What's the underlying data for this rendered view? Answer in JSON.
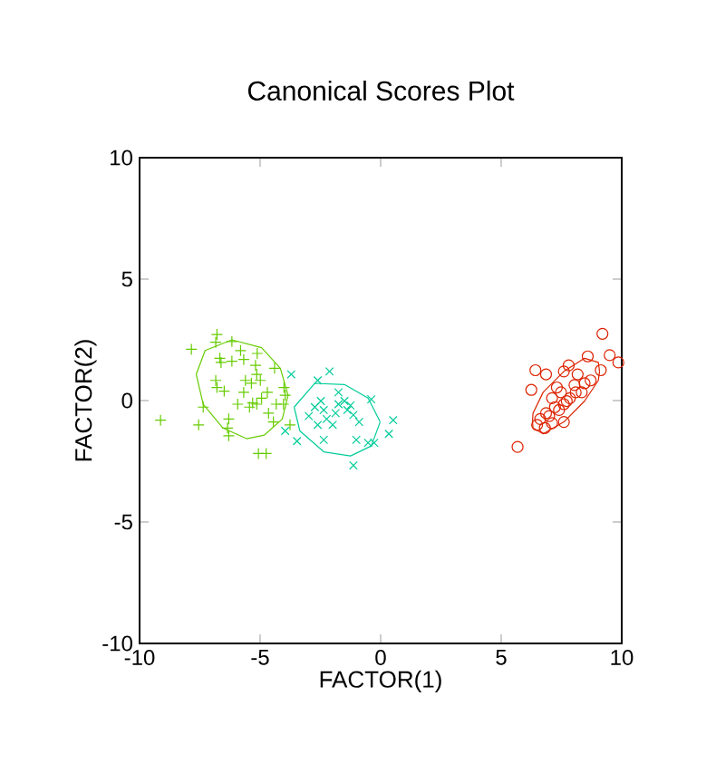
{
  "chart_data": {
    "type": "scatter",
    "title": "Canonical Scores Plot",
    "xlabel": "FACTOR(1)",
    "ylabel": "FACTOR(2)",
    "xlim": [
      -10,
      10
    ],
    "ylim": [
      -10,
      10
    ],
    "xticks": [
      -10,
      -5,
      0,
      5,
      10
    ],
    "yticks": [
      -10,
      -5,
      0,
      5,
      10
    ],
    "grid": false,
    "series": [
      {
        "color": "#66cc00",
        "marker": "plus",
        "x": [
          -7.85,
          -9.13,
          -7.55,
          -7.36,
          -6.79,
          -6.84,
          -6.67,
          -6.62,
          -6.84,
          -6.79,
          -6.49,
          -6.17,
          -6.17,
          -6.3,
          -6.35,
          -6.3,
          -5.81,
          -5.68,
          -5.61,
          -5.68,
          -5.93,
          -5.44,
          -5.31,
          -5.19,
          -5.14,
          -5.12,
          -5.36,
          -4.99,
          -5.14,
          -4.94,
          -5.07,
          -4.75,
          -4.7,
          -4.65,
          -4.45,
          -4.4,
          -4.33,
          -4.01,
          -3.96,
          -4.03,
          -3.76
        ],
        "values": [
          2.11,
          -0.81,
          -1.0,
          -0.27,
          2.72,
          2.4,
          1.74,
          1.57,
          0.83,
          0.54,
          0.39,
          2.43,
          1.62,
          -0.76,
          -1.13,
          -1.45,
          2.06,
          1.69,
          0.83,
          0.34,
          -0.15,
          -0.27,
          -0.1,
          1.45,
          1.08,
          1.94,
          0.71,
          0.83,
          -0.15,
          0.1,
          -2.18,
          -2.18,
          0.34,
          -0.52,
          -0.88,
          1.33,
          -0.15,
          0.54,
          0.22,
          -0.15,
          -1.0
        ]
      },
      {
        "color": "#00cc99",
        "marker": "cross",
        "x": [
          -3.71,
          -3.96,
          -3.47,
          -2.61,
          -2.12,
          -2.48,
          -2.73,
          -2.36,
          -2.24,
          -1.99,
          -2.36,
          -1.75,
          -1.5,
          -1.38,
          -1.25,
          -1.13,
          -1.75,
          -1.87,
          -1.13,
          -1.01,
          -0.52,
          -0.39,
          -0.27,
          0.34,
          0.52,
          -2.98,
          -0.89,
          -2.61
        ],
        "values": [
          1.08,
          -1.25,
          -1.67,
          0.83,
          1.2,
          -0.02,
          -0.27,
          -0.39,
          -0.76,
          -1.0,
          -1.62,
          -0.15,
          -0.02,
          -0.39,
          -0.2,
          -0.59,
          0.34,
          -0.52,
          -2.67,
          -1.62,
          -1.74,
          0.05,
          -1.74,
          -1.37,
          -0.81,
          -0.64,
          -0.88,
          -1.0
        ]
      },
      {
        "color": "#dd2200",
        "marker": "circle",
        "x": [
          5.68,
          9.2,
          9.5,
          9.86,
          9.13,
          8.59,
          6.42,
          6.25,
          6.86,
          7.31,
          7.6,
          7.8,
          8.17,
          8.04,
          8.46,
          8.34,
          7.85,
          7.6,
          7.23,
          6.99,
          6.62,
          6.81,
          6.49,
          7.11,
          7.4,
          7.72,
          8.09,
          7.48,
          7.11,
          6.86,
          7.6,
          8.71
        ],
        "values": [
          -1.91,
          2.75,
          1.87,
          1.57,
          1.25,
          1.82,
          1.25,
          0.44,
          1.08,
          0.54,
          1.2,
          1.45,
          1.08,
          0.64,
          0.71,
          0.34,
          0.1,
          -0.15,
          -0.27,
          -0.64,
          -0.76,
          -1.13,
          -1.0,
          -0.93,
          -0.39,
          -0.02,
          0.34,
          0.34,
          0.1,
          -0.52,
          -0.88,
          0.83
        ]
      },
      {
        "type": "line",
        "color": "#66cc00",
        "marker": "none",
        "x": [
          -7.65,
          -7.28,
          -6.17,
          -4.94,
          -4.16,
          -3.84
        ],
        "values": [
          1.08,
          2.06,
          2.5,
          2.18,
          1.33,
          0.22
        ]
      },
      {
        "type": "line",
        "color": "#66cc00",
        "marker": "none",
        "x": [
          -7.65,
          -7.36,
          -6.54,
          -5.56,
          -4.82,
          -4.08,
          -3.84
        ],
        "values": [
          1.08,
          -0.15,
          -1.13,
          -1.57,
          -1.42,
          -0.76,
          0.22
        ]
      },
      {
        "type": "line",
        "color": "#00cc99",
        "marker": "none",
        "x": [
          -3.59,
          -2.73,
          -1.5,
          -0.52,
          -0.02
        ],
        "values": [
          -0.27,
          0.71,
          0.66,
          0.1,
          -0.88
        ]
      },
      {
        "type": "line",
        "color": "#00cc99",
        "marker": "none",
        "x": [
          -3.59,
          -3.35,
          -2.36,
          -1.25,
          -0.39,
          -0.02
        ],
        "values": [
          -0.27,
          -1.25,
          -2.11,
          -2.28,
          -1.87,
          -0.88
        ]
      },
      {
        "type": "line",
        "color": "#dd2200",
        "marker": "none",
        "x": [
          6.3,
          6.32,
          6.74,
          7.6,
          8.46,
          9.03,
          9.08
        ],
        "values": [
          -0.85,
          -0.52,
          0.34,
          1.2,
          1.74,
          1.57,
          1.2
        ]
      },
      {
        "type": "line",
        "color": "#dd2200",
        "marker": "none",
        "x": [
          6.3,
          6.32,
          6.74,
          7.6,
          8.46,
          9.03,
          9.08
        ],
        "values": [
          -0.85,
          -1.13,
          -1.37,
          -0.88,
          -0.02,
          0.83,
          1.2
        ]
      }
    ]
  }
}
